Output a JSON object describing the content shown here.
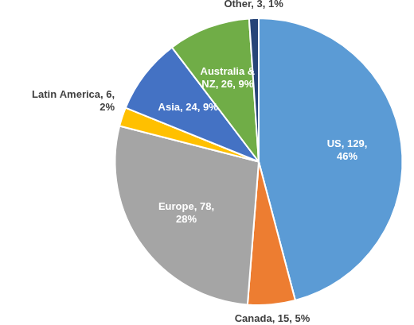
{
  "chart_data": {
    "type": "pie",
    "categories": [
      "US",
      "Canada",
      "Europe",
      "Latin America",
      "Asia",
      "Australia & NZ",
      "Other"
    ],
    "values": [
      129,
      15,
      78,
      6,
      24,
      26,
      3
    ],
    "value_labels": [
      "US, 129, 46%",
      "Canada, 15, 5%",
      "Europe, 78, 28%",
      "Latin America, 6, 2%",
      "Asia, 24, 9%",
      "Australia & NZ, 26, 9%",
      "Other, 3, 1%"
    ],
    "colors": [
      "#5b9bd5",
      "#ed7d31",
      "#a5a5a5",
      "#ffc000",
      "#4472c4",
      "#70ad47",
      "#264478"
    ],
    "data_labels": true
  }
}
